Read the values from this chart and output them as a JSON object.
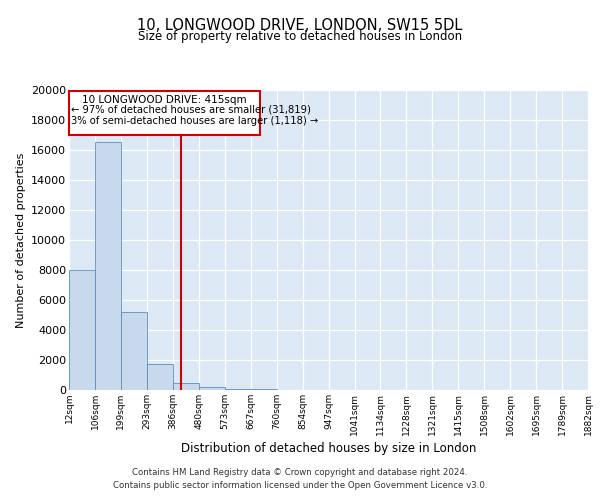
{
  "title1": "10, LONGWOOD DRIVE, LONDON, SW15 5DL",
  "title2": "Size of property relative to detached houses in London",
  "xlabel": "Distribution of detached houses by size in London",
  "ylabel": "Number of detached properties",
  "bar_color": "#c9d9ec",
  "bar_edge_color": "#5a8fc0",
  "vline_color": "#cc0000",
  "vline_x": 415,
  "annotation_title": "10 LONGWOOD DRIVE: 415sqm",
  "annotation_line1": "← 97% of detached houses are smaller (31,819)",
  "annotation_line2": "3% of semi-detached houses are larger (1,118) →",
  "annotation_box_color": "#cc0000",
  "background_color": "#dde8f5",
  "footer1": "Contains HM Land Registry data © Crown copyright and database right 2024.",
  "footer2": "Contains public sector information licensed under the Open Government Licence v3.0.",
  "bin_edges": [
    12,
    106,
    199,
    293,
    386,
    480,
    573,
    667,
    760,
    854,
    947,
    1041,
    1134,
    1228,
    1321,
    1415,
    1508,
    1602,
    1695,
    1789,
    1882
  ],
  "bin_labels": [
    "12sqm",
    "106sqm",
    "199sqm",
    "293sqm",
    "386sqm",
    "480sqm",
    "573sqm",
    "667sqm",
    "760sqm",
    "854sqm",
    "947sqm",
    "1041sqm",
    "1134sqm",
    "1228sqm",
    "1321sqm",
    "1415sqm",
    "1508sqm",
    "1602sqm",
    "1695sqm",
    "1789sqm",
    "1882sqm"
  ],
  "bar_heights": [
    8000,
    16500,
    5200,
    1750,
    450,
    175,
    100,
    60,
    25,
    10,
    5,
    2,
    1,
    1,
    0,
    0,
    0,
    0,
    0,
    0
  ],
  "ylim": [
    0,
    20000
  ],
  "yticks": [
    0,
    2000,
    4000,
    6000,
    8000,
    10000,
    12000,
    14000,
    16000,
    18000,
    20000
  ]
}
